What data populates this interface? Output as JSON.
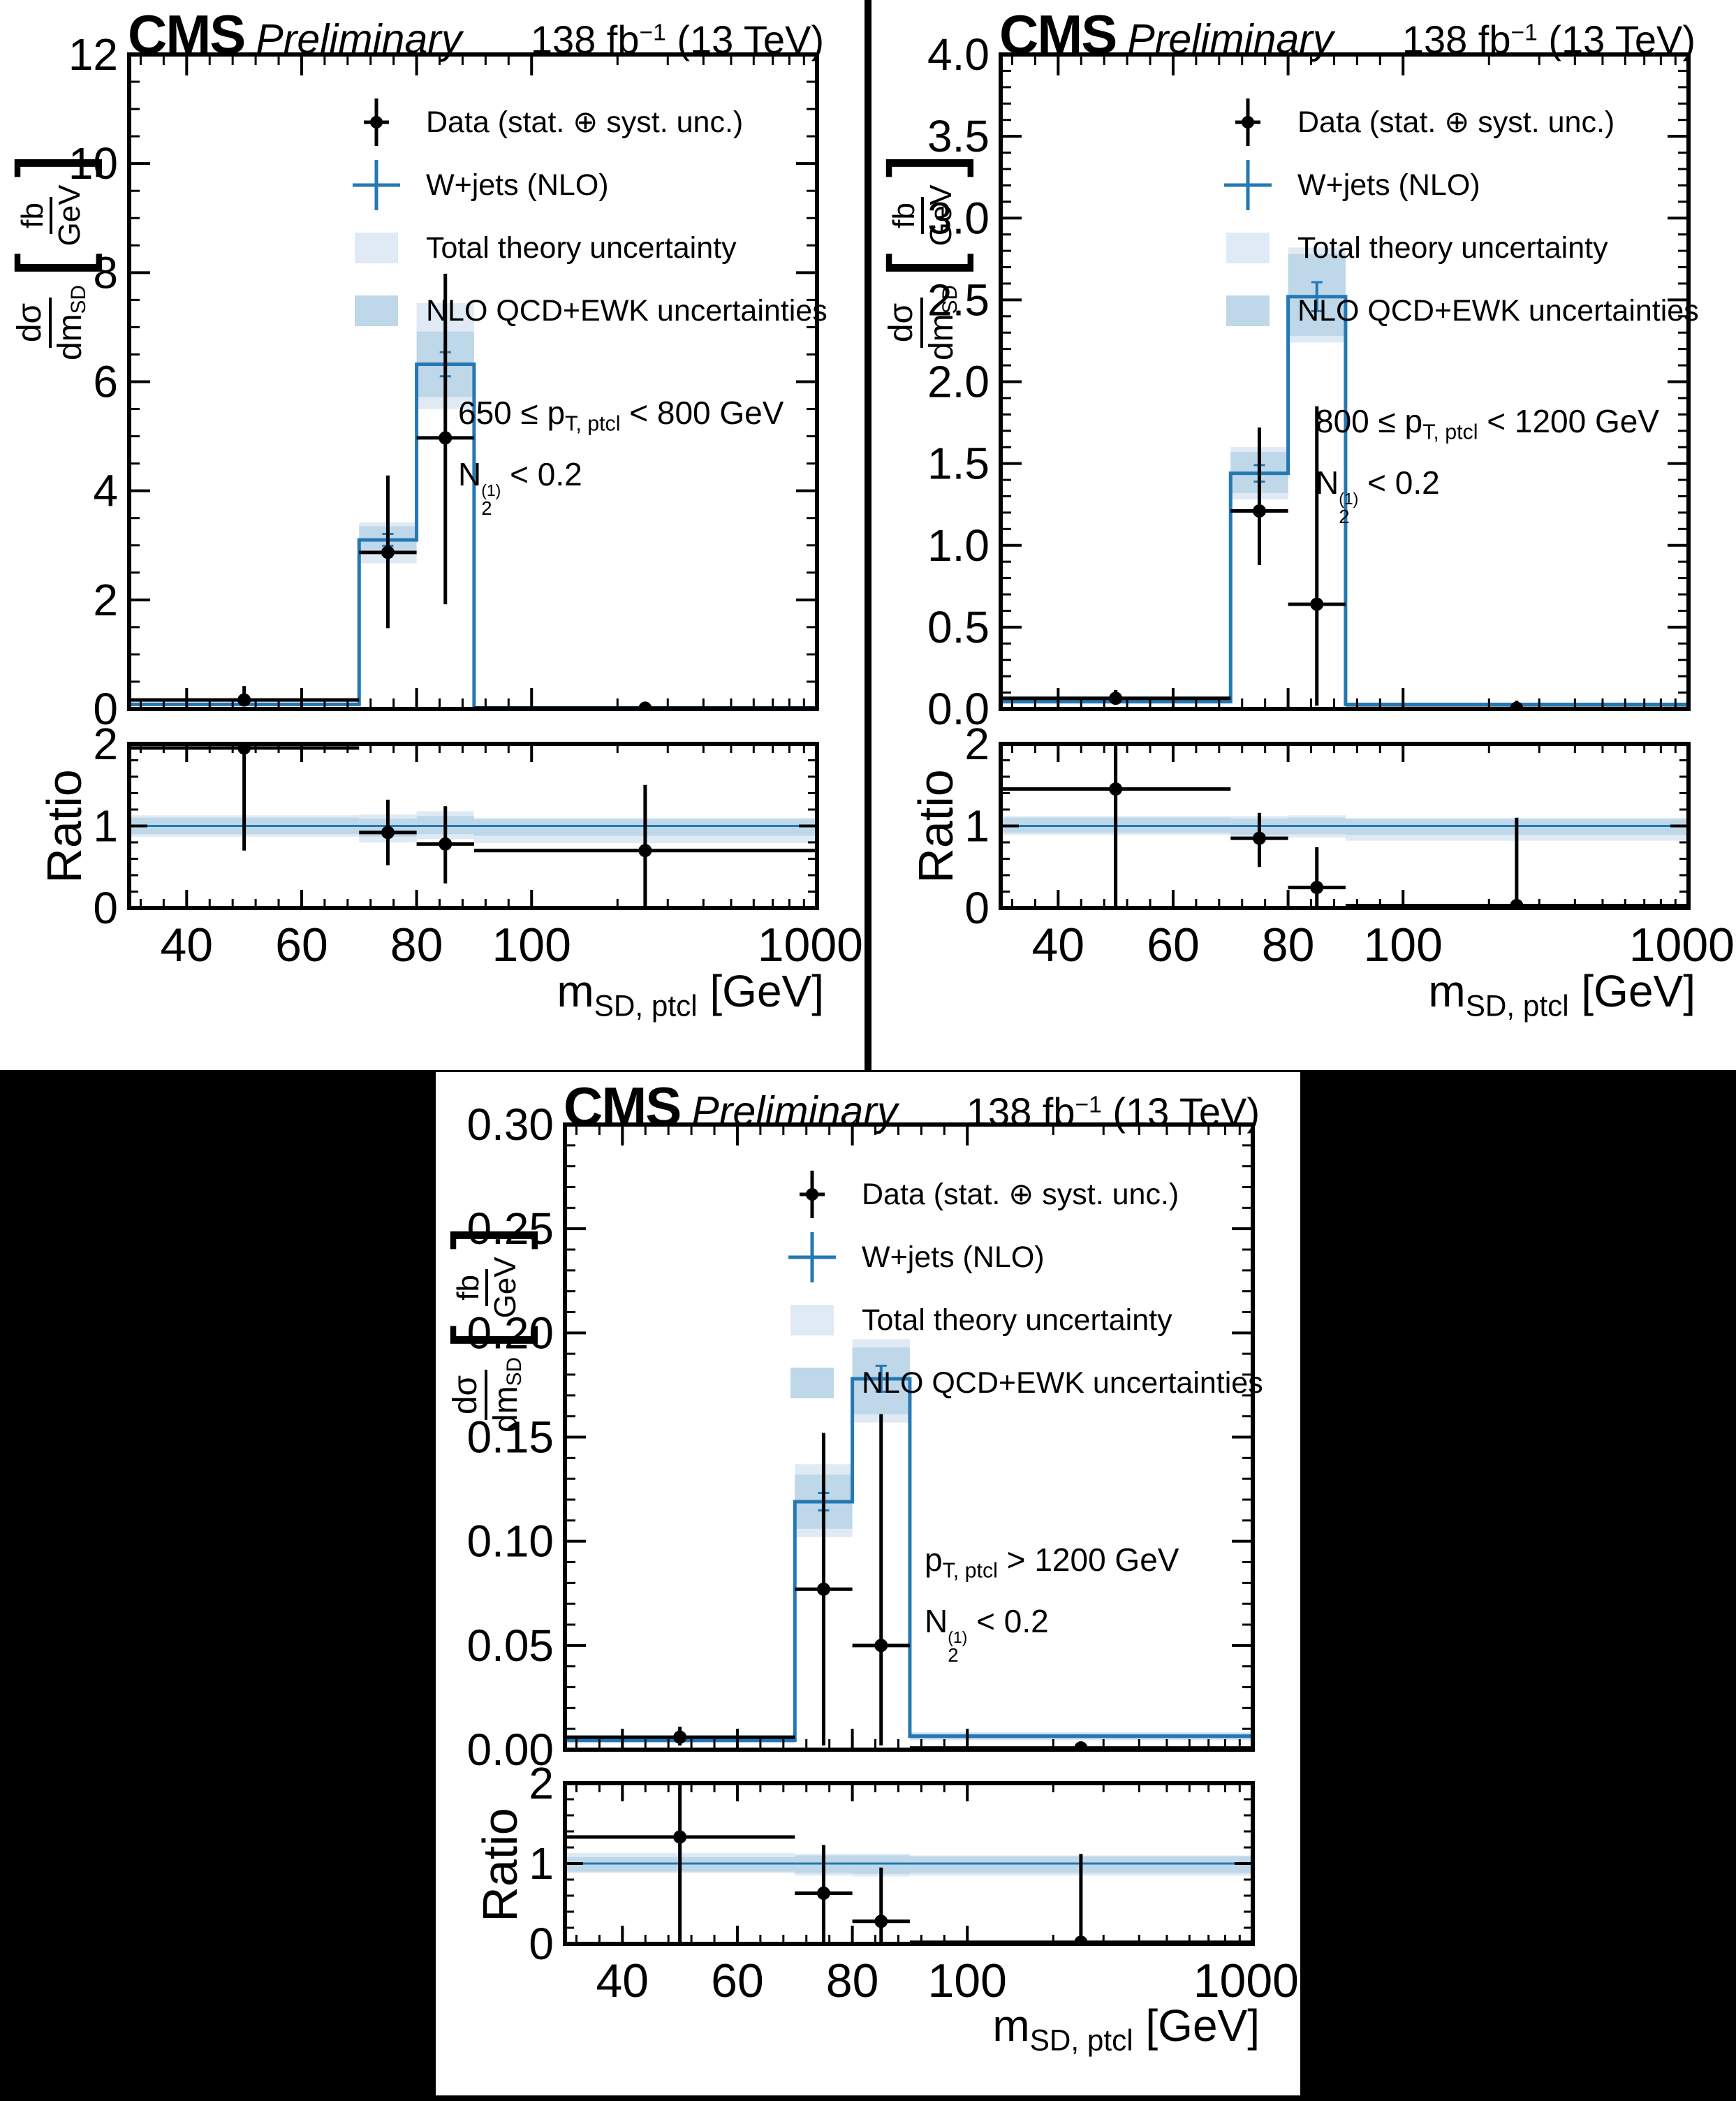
{
  "colors": {
    "wjets": "#2478b4",
    "band_light": "#dfeaf4",
    "band_dark": "#bed7e9",
    "data_marker": "#000000",
    "panel_bg": "#ffffff",
    "canvas_bg": "#000000"
  },
  "chart_data": [
    {
      "type": "bar",
      "subtype": "histogram-with-ratio",
      "title": {
        "cms": "CMS",
        "preliminary": "Preliminary",
        "lumi_prefix": "138 fb",
        "lumi_sup": "−1",
        "lumi_suffix": " (13 TeV)"
      },
      "ylabel_text": "dσ/dm_SD [fb/GeV]",
      "ylabel": {
        "num": "dσ",
        "den_base": "dm",
        "den_sub": "SD",
        "lbrk": "[",
        "rbrk": "]",
        "unit_num": "fb",
        "unit_den": "GeV"
      },
      "legend": [
        "Data (stat. ⊕ syst. unc.)",
        "W+jets (NLO)",
        "Total theory uncertainty",
        "NLO QCD+EWK uncertainties"
      ],
      "annotation": {
        "pt_prefix": "650 ≤ p",
        "pt_sub": "T, ptcl",
        "pt_suffix": " < 800 GeV",
        "n2_base": "N",
        "n2_sub": "2",
        "n2_sup": "(1)",
        "n2_suffix": " < 0.2"
      },
      "ratio_label": "Ratio",
      "xtitle": {
        "base": "m",
        "sub": "SD, ptcl",
        "suffix": " [GeV]"
      },
      "x": {
        "range": [
          30,
          1000
        ],
        "lin_max": 100,
        "lin_frac": 0.585,
        "bin_edges": [
          30,
          70,
          80,
          90,
          1000
        ],
        "ticks": [
          40,
          60,
          80,
          100,
          1000
        ],
        "minor_ticks": [
          32,
          36,
          44,
          48,
          52,
          56,
          64,
          68,
          72,
          76,
          84,
          88,
          92,
          96,
          200,
          300,
          400,
          500,
          600,
          700,
          800,
          900
        ]
      },
      "main": {
        "ylim": [
          0,
          12
        ],
        "ytick_step": 2,
        "ytick_decimals": 0,
        "yminor_step": 0.5,
        "wjets": [
          0.085,
          3.1,
          6.32,
          0.02
        ],
        "band_light": [
          [
            0.055,
            0.12
          ],
          [
            2.67,
            3.42
          ],
          [
            5.5,
            7.44
          ],
          [
            0.012,
            0.032
          ]
        ],
        "band_dark": [
          [
            0.065,
            0.105
          ],
          [
            2.92,
            3.35
          ],
          [
            5.72,
            6.92
          ],
          [
            0.015,
            0.027
          ]
        ],
        "data": [
          {
            "x": 50,
            "y": 0.165,
            "ylo": 0.05,
            "yhi": 0.42,
            "xlo": 30,
            "xhi": 70
          },
          {
            "x": 75,
            "y": 2.87,
            "ylo": 1.48,
            "yhi": 4.28,
            "xlo": 70,
            "xhi": 80
          },
          {
            "x": 85,
            "y": 4.97,
            "ylo": 1.92,
            "yhi": 7.98,
            "xlo": 80,
            "xhi": 90
          },
          {
            "x": 250,
            "y": 0.014,
            "ylo": 0.0,
            "yhi": 0.1,
            "xlo": 90,
            "xhi": 1000
          }
        ]
      },
      "ratio": {
        "ylim": [
          0,
          2
        ],
        "ytick_step": 1,
        "ytick_decimals": 0,
        "yminor_step": 0.2,
        "refline": 1.0,
        "band_light": [
          [
            0.87,
            1.13
          ],
          [
            0.8,
            1.14
          ],
          [
            0.84,
            1.18
          ],
          [
            0.79,
            1.1
          ]
        ],
        "band_dark": [
          [
            0.9,
            1.1
          ],
          [
            0.87,
            1.09
          ],
          [
            0.9,
            1.12
          ],
          [
            0.88,
            1.08
          ]
        ],
        "data": [
          {
            "x": 50,
            "y": 1.95,
            "ylo": 0.7,
            "yhi": 2.25,
            "xlo": 30,
            "xhi": 70
          },
          {
            "x": 75,
            "y": 0.92,
            "ylo": 0.52,
            "yhi": 1.32,
            "xlo": 70,
            "xhi": 80
          },
          {
            "x": 85,
            "y": 0.78,
            "ylo": 0.3,
            "yhi": 1.24,
            "xlo": 80,
            "xhi": 90
          },
          {
            "x": 250,
            "y": 0.7,
            "ylo": 0.02,
            "yhi": 1.5,
            "xlo": 90,
            "xhi": 1000
          }
        ]
      }
    },
    {
      "type": "bar",
      "subtype": "histogram-with-ratio",
      "title": {
        "cms": "CMS",
        "preliminary": "Preliminary",
        "lumi_prefix": "138 fb",
        "lumi_sup": "−1",
        "lumi_suffix": " (13 TeV)"
      },
      "ylabel_text": "dσ/dm_SD [fb/GeV]",
      "ylabel": {
        "num": "dσ",
        "den_base": "dm",
        "den_sub": "SD",
        "lbrk": "[",
        "rbrk": "]",
        "unit_num": "fb",
        "unit_den": "GeV"
      },
      "legend": [
        "Data (stat. ⊕ syst. unc.)",
        "W+jets (NLO)",
        "Total theory uncertainty",
        "NLO QCD+EWK uncertainties"
      ],
      "annotation": {
        "pt_prefix": "800 ≤ p",
        "pt_sub": "T, ptcl",
        "pt_suffix": " < 1200 GeV",
        "n2_base": "N",
        "n2_sub": "2",
        "n2_sup": "(1)",
        "n2_suffix": " < 0.2"
      },
      "ratio_label": "Ratio",
      "xtitle": {
        "base": "m",
        "sub": "SD, ptcl",
        "suffix": " [GeV]"
      },
      "x": {
        "range": [
          30,
          1000
        ],
        "lin_max": 100,
        "lin_frac": 0.585,
        "bin_edges": [
          30,
          70,
          80,
          90,
          1000
        ],
        "ticks": [
          40,
          60,
          80,
          100,
          1000
        ],
        "minor_ticks": [
          32,
          36,
          44,
          48,
          52,
          56,
          64,
          68,
          72,
          76,
          84,
          88,
          92,
          96,
          200,
          300,
          400,
          500,
          600,
          700,
          800,
          900
        ]
      },
      "main": {
        "ylim": [
          0,
          4
        ],
        "ytick_step": 0.5,
        "ytick_decimals": 1,
        "yminor_step": 0.1,
        "wjets": [
          0.045,
          1.44,
          2.52,
          0.028
        ],
        "band_light": [
          [
            0.03,
            0.062
          ],
          [
            1.28,
            1.6
          ],
          [
            2.24,
            2.82
          ],
          [
            0.02,
            0.038
          ]
        ],
        "band_dark": [
          [
            0.035,
            0.056
          ],
          [
            1.32,
            1.57
          ],
          [
            2.28,
            2.78
          ],
          [
            0.023,
            0.034
          ]
        ],
        "data": [
          {
            "x": 50,
            "y": 0.065,
            "ylo": 0.03,
            "yhi": 0.115,
            "xlo": 30,
            "xhi": 70
          },
          {
            "x": 75,
            "y": 1.21,
            "ylo": 0.88,
            "yhi": 1.72,
            "xlo": 70,
            "xhi": 80
          },
          {
            "x": 85,
            "y": 0.64,
            "ylo": 0.02,
            "yhi": 1.85,
            "xlo": 80,
            "xhi": 90
          },
          {
            "x": 250,
            "y": 0.004,
            "ylo": 0.0,
            "yhi": 0.05,
            "xlo": 90,
            "xhi": 1000
          }
        ]
      },
      "ratio": {
        "ylim": [
          0,
          2
        ],
        "ytick_step": 1,
        "ytick_decimals": 0,
        "yminor_step": 0.2,
        "refline": 1.0,
        "band_light": [
          [
            0.89,
            1.12
          ],
          [
            0.85,
            1.12
          ],
          [
            0.86,
            1.13
          ],
          [
            0.82,
            1.1
          ]
        ],
        "band_dark": [
          [
            0.92,
            1.1
          ],
          [
            0.89,
            1.09
          ],
          [
            0.9,
            1.1
          ],
          [
            0.89,
            1.08
          ]
        ],
        "data": [
          {
            "x": 50,
            "y": 1.45,
            "ylo": 0.02,
            "yhi": 2.25,
            "xlo": 30,
            "xhi": 70
          },
          {
            "x": 75,
            "y": 0.85,
            "ylo": 0.5,
            "yhi": 1.16,
            "xlo": 70,
            "xhi": 80
          },
          {
            "x": 85,
            "y": 0.25,
            "ylo": 0.02,
            "yhi": 0.74,
            "xlo": 80,
            "xhi": 90
          },
          {
            "x": 250,
            "y": 0.03,
            "ylo": 0.0,
            "yhi": 1.1,
            "xlo": 90,
            "xhi": 1000
          }
        ]
      }
    },
    {
      "type": "bar",
      "subtype": "histogram-with-ratio",
      "title": {
        "cms": "CMS",
        "preliminary": "Preliminary",
        "lumi_prefix": "138 fb",
        "lumi_sup": "−1",
        "lumi_suffix": " (13 TeV)"
      },
      "ylabel_text": "dσ/dm_SD [fb/GeV]",
      "ylabel": {
        "num": "dσ",
        "den_base": "dm",
        "den_sub": "SD",
        "lbrk": "[",
        "rbrk": "]",
        "unit_num": "fb",
        "unit_den": "GeV"
      },
      "legend": [
        "Data (stat. ⊕ syst. unc.)",
        "W+jets (NLO)",
        "Total theory uncertainty",
        "NLO QCD+EWK uncertainties"
      ],
      "annotation": {
        "pt_prefix": "p",
        "pt_sub": "T, ptcl",
        "pt_suffix": " > 1200 GeV",
        "n2_base": "N",
        "n2_sub": "2",
        "n2_sup": "(1)",
        "n2_suffix": " < 0.2"
      },
      "ratio_label": "Ratio",
      "xtitle": {
        "base": "m",
        "sub": "SD, ptcl",
        "suffix": " [GeV]"
      },
      "x": {
        "range": [
          30,
          1000
        ],
        "lin_max": 100,
        "lin_frac": 0.585,
        "bin_edges": [
          30,
          70,
          80,
          90,
          1000
        ],
        "ticks": [
          40,
          60,
          80,
          100,
          1000
        ],
        "minor_ticks": [
          32,
          36,
          44,
          48,
          52,
          56,
          64,
          68,
          72,
          76,
          84,
          88,
          92,
          96,
          200,
          300,
          400,
          500,
          600,
          700,
          800,
          900
        ]
      },
      "main": {
        "ylim": [
          0,
          0.3
        ],
        "ytick_step": 0.05,
        "ytick_decimals": 2,
        "yminor_step": 0.01,
        "wjets": [
          0.0045,
          0.119,
          0.178,
          0.0065
        ],
        "band_light": [
          [
            0.003,
            0.006
          ],
          [
            0.102,
            0.137
          ],
          [
            0.157,
            0.197
          ],
          [
            0.0045,
            0.0085
          ]
        ],
        "band_dark": [
          [
            0.0035,
            0.0055
          ],
          [
            0.106,
            0.132
          ],
          [
            0.161,
            0.193
          ],
          [
            0.005,
            0.0078
          ]
        ],
        "data": [
          {
            "x": 50,
            "y": 0.006,
            "ylo": 0.002,
            "yhi": 0.011,
            "xlo": 30,
            "xhi": 70
          },
          {
            "x": 75,
            "y": 0.077,
            "ylo": 0.002,
            "yhi": 0.152,
            "xlo": 70,
            "xhi": 80
          },
          {
            "x": 85,
            "y": 0.05,
            "ylo": 0.002,
            "yhi": 0.161,
            "xlo": 80,
            "xhi": 90
          },
          {
            "x": 250,
            "y": 0.0008,
            "ylo": 0.0,
            "yhi": 0.004,
            "xlo": 90,
            "xhi": 1000
          }
        ]
      },
      "ratio": {
        "ylim": [
          0,
          2
        ],
        "ytick_step": 1,
        "ytick_decimals": 0,
        "yminor_step": 0.2,
        "refline": 1.0,
        "band_light": [
          [
            0.88,
            1.13
          ],
          [
            0.85,
            1.12
          ],
          [
            0.84,
            1.12
          ],
          [
            0.85,
            1.1
          ]
        ],
        "band_dark": [
          [
            0.9,
            1.08
          ],
          [
            0.88,
            1.1
          ],
          [
            0.87,
            1.1
          ],
          [
            0.88,
            1.09
          ]
        ],
        "data": [
          {
            "x": 50,
            "y": 1.33,
            "ylo": 0.02,
            "yhi": 2.25,
            "xlo": 30,
            "xhi": 70
          },
          {
            "x": 75,
            "y": 0.63,
            "ylo": 0.02,
            "yhi": 1.23,
            "xlo": 70,
            "xhi": 80
          },
          {
            "x": 85,
            "y": 0.28,
            "ylo": 0.02,
            "yhi": 0.95,
            "xlo": 80,
            "xhi": 90
          },
          {
            "x": 250,
            "y": 0.02,
            "ylo": 0.0,
            "yhi": 1.12,
            "xlo": 90,
            "xhi": 1000
          }
        ]
      }
    }
  ]
}
